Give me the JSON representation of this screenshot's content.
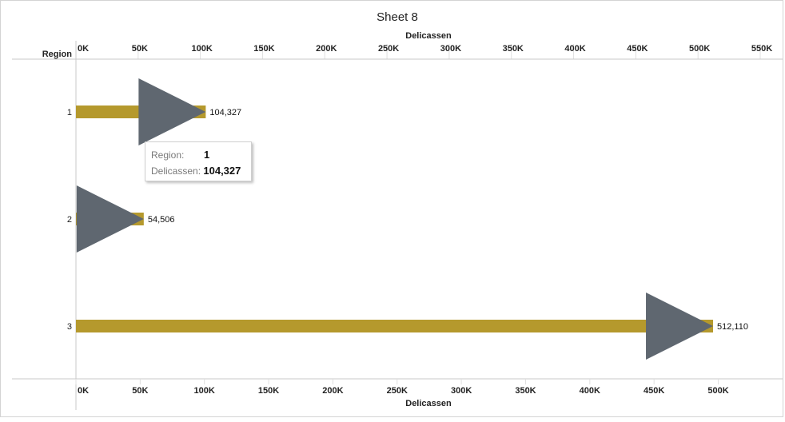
{
  "sheet": {
    "title": "Sheet 8"
  },
  "chart_data": {
    "type": "bar",
    "title": "Sheet 8",
    "xlabel": "Delicassen",
    "ylabel": "Region",
    "categories": [
      "1",
      "2",
      "3"
    ],
    "values": [
      104327,
      54506,
      512110
    ],
    "value_labels": [
      "104,327",
      "54,506",
      "512,110"
    ],
    "xlim_top": [
      0,
      550000
    ],
    "xlim_bottom": [
      0,
      512110
    ],
    "top_ticks": [
      "0K",
      "50K",
      "100K",
      "150K",
      "200K",
      "250K",
      "300K",
      "350K",
      "400K",
      "450K",
      "500K",
      "550K"
    ],
    "top_tick_values": [
      0,
      50000,
      100000,
      150000,
      200000,
      250000,
      300000,
      350000,
      400000,
      450000,
      500000,
      550000
    ],
    "bottom_ticks": [
      "0K",
      "50K",
      "100K",
      "150K",
      "200K",
      "250K",
      "300K",
      "350K",
      "400K",
      "450K",
      "500K"
    ],
    "bottom_tick_values": [
      0,
      50000,
      100000,
      150000,
      200000,
      250000,
      300000,
      350000,
      400000,
      450000,
      500000
    ],
    "bar_color": "#b5992d",
    "marker_color": "#5f6770",
    "marker_shape": "triangle-right",
    "grid": false
  },
  "tooltip": {
    "region_label": "Region:",
    "region_value": "1",
    "measure_label": "Delicassen:",
    "measure_value": "104,327"
  }
}
